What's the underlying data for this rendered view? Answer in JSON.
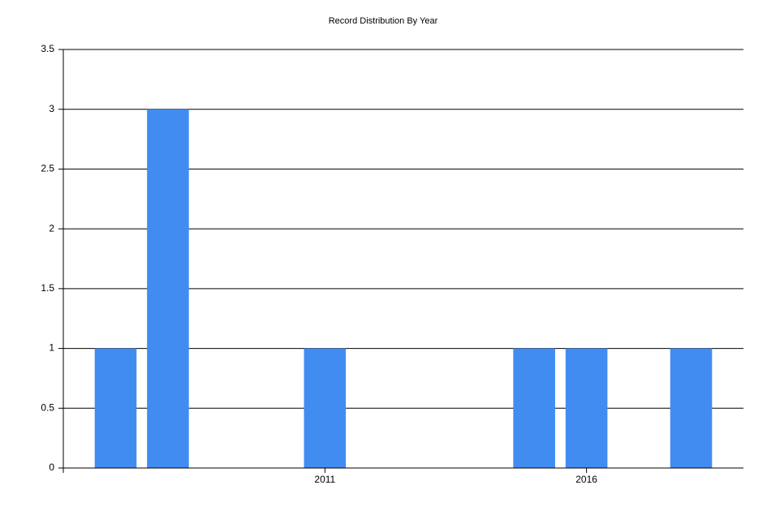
{
  "chart_data": {
    "type": "bar",
    "title": "Record Distribution By Year",
    "x": [
      2007,
      2008,
      2011,
      2015,
      2016,
      2018
    ],
    "values": [
      1,
      3,
      1,
      1,
      1,
      1
    ],
    "color": "#418cf0",
    "xlim": [
      2006,
      2019
    ],
    "xticks": [
      2011,
      2016
    ],
    "ylim": [
      0,
      3.5
    ],
    "yticks": [
      0,
      0.5,
      1,
      1.5,
      2,
      2.5,
      3,
      3.5
    ],
    "grid": true
  }
}
